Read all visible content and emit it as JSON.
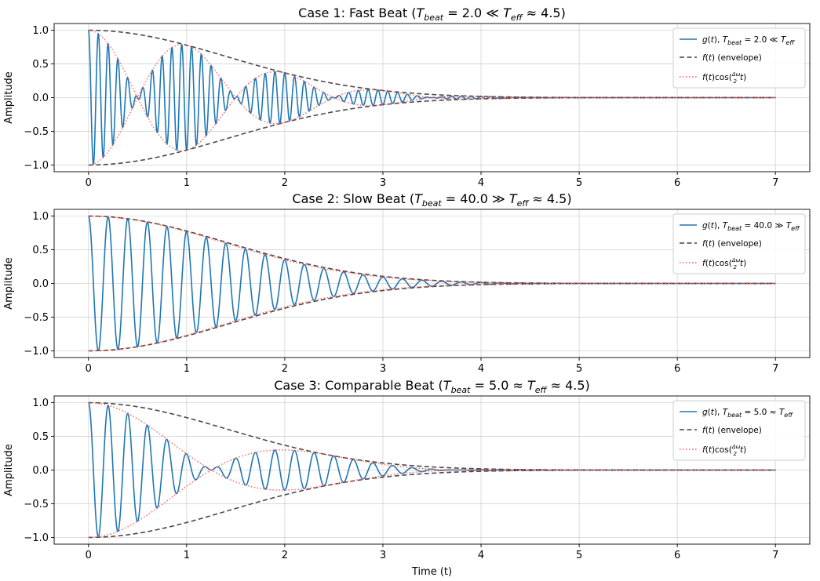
{
  "chart_data": [
    {
      "type": "line",
      "title": "Case 1: Fast Beat (T_beat = 2.0 ≪ T_eff ≈ 4.5)",
      "title_parts": {
        "prefix": "Case 1: Fast Beat (",
        "beat_value": "2.0",
        "relation": "≪",
        "eff_value": "4.5",
        "suffix": ")"
      },
      "ylabel": "Amplitude",
      "xlabel": "",
      "xlim": [
        -0.35,
        7.35
      ],
      "ylim": [
        -1.1,
        1.1
      ],
      "xticks": [
        0,
        1,
        2,
        3,
        4,
        5,
        6,
        7
      ],
      "yticks": [
        -1.0,
        -0.5,
        0.0,
        0.5,
        1.0
      ],
      "ytick_labels": [
        "−1.0",
        "−0.5",
        "0.0",
        "0.5",
        "1.0"
      ],
      "grid": true,
      "legend_placement": "upper right",
      "params": {
        "T_beat": 2.0,
        "T_eff": 4.5,
        "carrier_period": 0.1,
        "t_max": 7
      },
      "series": [
        {
          "name": "g(t), T_beat = 2.0 ≪ T_eff",
          "label_main": "g(t), T",
          "label_sub": "beat",
          "label_rest": " = 2.0 ≪ T",
          "label_sub2": "eff",
          "color": "#1f77b4",
          "style": "solid"
        },
        {
          "name": "f(t) (envelope)",
          "label_main": "f(t) (envelope)",
          "color": "#404040",
          "style": "dashed"
        },
        {
          "name": "f(t)cos(Δω/2 t)",
          "label_main": "f(t)cos(",
          "label_frac_num": "Δω",
          "label_frac_den": "2",
          "label_rest": "t)",
          "color": "#ff5a4f",
          "style": "dotted"
        }
      ]
    },
    {
      "type": "line",
      "title": "Case 2: Slow Beat (T_beat = 40.0 ≫ T_eff ≈ 4.5)",
      "title_parts": {
        "prefix": "Case 2: Slow Beat (",
        "beat_value": "40.0",
        "relation": "≫",
        "eff_value": "4.5",
        "suffix": ")"
      },
      "ylabel": "Amplitude",
      "xlabel": "",
      "xlim": [
        -0.35,
        7.35
      ],
      "ylim": [
        -1.1,
        1.1
      ],
      "xticks": [
        0,
        1,
        2,
        3,
        4,
        5,
        6,
        7
      ],
      "yticks": [
        -1.0,
        -0.5,
        0.0,
        0.5,
        1.0
      ],
      "ytick_labels": [
        "−1.0",
        "−0.5",
        "0.0",
        "0.5",
        "1.0"
      ],
      "grid": true,
      "legend_placement": "upper right",
      "params": {
        "T_beat": 40.0,
        "T_eff": 4.5,
        "carrier_period": 0.2,
        "t_max": 7
      },
      "series": [
        {
          "name": "g(t), T_beat = 40.0 ≫ T_eff",
          "label_main": "g(t), T",
          "label_sub": "beat",
          "label_rest": " = 40.0 ≫ T",
          "label_sub2": "eff",
          "color": "#1f77b4",
          "style": "solid"
        },
        {
          "name": "f(t) (envelope)",
          "label_main": "f(t) (envelope)",
          "color": "#404040",
          "style": "dashed"
        },
        {
          "name": "f(t)cos(Δω/2 t)",
          "label_main": "f(t)cos(",
          "label_frac_num": "Δω",
          "label_frac_den": "2",
          "label_rest": "t)",
          "color": "#ff5a4f",
          "style": "dotted"
        }
      ]
    },
    {
      "type": "line",
      "title": "Case 3: Comparable Beat (T_beat = 5.0 ≈ T_eff ≈ 4.5)",
      "title_parts": {
        "prefix": "Case 3: Comparable Beat (",
        "beat_value": "5.0",
        "relation": "≈",
        "eff_value": "4.5",
        "suffix": ")"
      },
      "ylabel": "Amplitude",
      "xlabel": "Time (t)",
      "xlim": [
        -0.35,
        7.35
      ],
      "ylim": [
        -1.1,
        1.1
      ],
      "xticks": [
        0,
        1,
        2,
        3,
        4,
        5,
        6,
        7
      ],
      "yticks": [
        -1.0,
        -0.5,
        0.0,
        0.5,
        1.0
      ],
      "ytick_labels": [
        "−1.0",
        "−0.5",
        "0.0",
        "0.5",
        "1.0"
      ],
      "grid": true,
      "legend_placement": "upper right",
      "params": {
        "T_beat": 5.0,
        "T_eff": 4.5,
        "carrier_period": 0.2,
        "t_max": 7
      },
      "series": [
        {
          "name": "g(t), T_beat = 5.0 ≈ T_eff",
          "label_main": "g(t), T",
          "label_sub": "beat",
          "label_rest": " = 5.0 ≈ T",
          "label_sub2": "eff",
          "color": "#1f77b4",
          "style": "solid"
        },
        {
          "name": "f(t) (envelope)",
          "label_main": "f(t) (envelope)",
          "color": "#404040",
          "style": "dashed"
        },
        {
          "name": "f(t)cos(Δω/2 t)",
          "label_main": "f(t)cos(",
          "label_frac_num": "Δω",
          "label_frac_den": "2",
          "label_rest": "t)",
          "color": "#ff5a4f",
          "style": "dotted"
        }
      ]
    }
  ]
}
